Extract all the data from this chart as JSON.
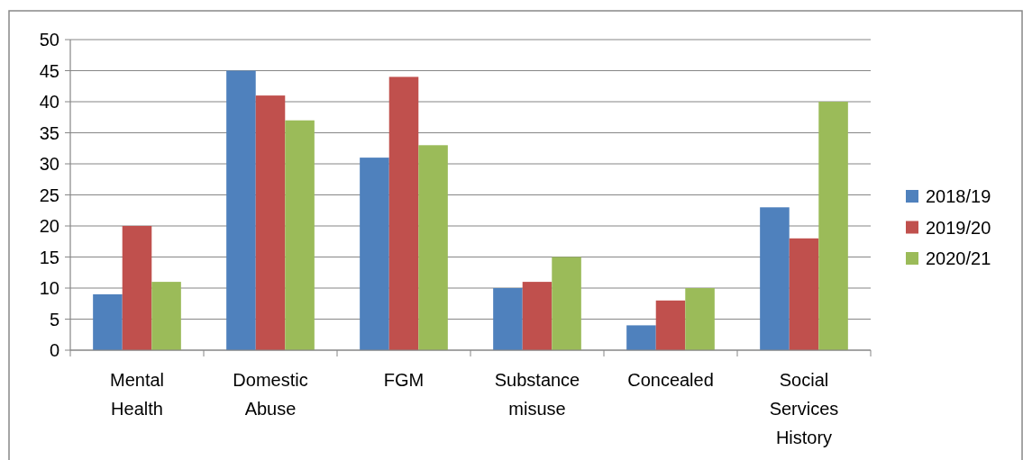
{
  "chart_data": {
    "type": "bar",
    "categories": [
      "Mental Health",
      "Domestic Abuse",
      "FGM",
      "Substance misuse",
      "Concealed",
      "Social Services History"
    ],
    "series": [
      {
        "name": "2018/19",
        "color": "#4f81bd",
        "values": [
          9,
          45,
          31,
          10,
          4,
          23
        ]
      },
      {
        "name": "2019/20",
        "color": "#c0504d",
        "values": [
          20,
          41,
          44,
          11,
          8,
          18
        ]
      },
      {
        "name": "2020/21",
        "color": "#9bbb59",
        "values": [
          11,
          37,
          33,
          15,
          10,
          40
        ]
      }
    ],
    "ylim": [
      0,
      50
    ],
    "yticks": [
      0,
      5,
      10,
      15,
      20,
      25,
      30,
      35,
      40,
      45,
      50
    ],
    "grid": "y",
    "legend": "right"
  }
}
